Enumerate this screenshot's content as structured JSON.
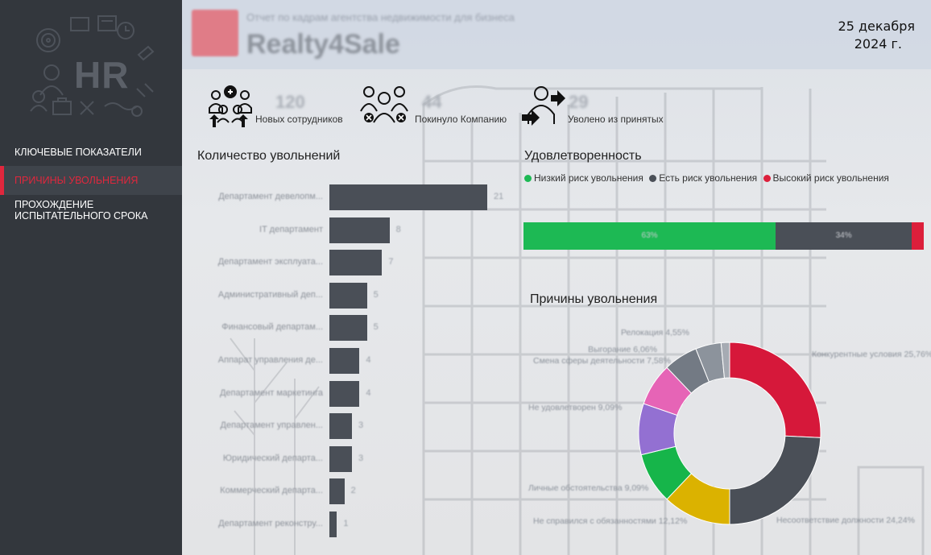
{
  "sidebar": {
    "logo_text": "HR",
    "items": [
      {
        "label": "КЛЮЧЕВЫЕ ПОКАЗАТЕЛИ"
      },
      {
        "label": "ПРИЧИНЫ УВОЛЬНЕНИЯ"
      },
      {
        "label": "ПРОХОЖДЕНИЕ ИСПЫТАТЕЛЬНОГО СРОКА"
      }
    ],
    "active_index": 1
  },
  "header": {
    "brand_name": "Realty4Sale",
    "brand_subtitle": "Отчет по кадрам агентства недвижимости для бизнеса",
    "date_line1": "25 декабря",
    "date_line2": "2024 г."
  },
  "kpis": [
    {
      "icon": "new-employees-icon",
      "value": "120",
      "label": "Новых сотрудников"
    },
    {
      "icon": "left-company-icon",
      "value": "44",
      "label": "Покинуло Компанию"
    },
    {
      "icon": "fired-icon",
      "value": "29",
      "label": "Уволено из принятых"
    }
  ],
  "dismissals": {
    "title": "Количество увольнений",
    "rows": [
      {
        "label": "Департамент девелопм...",
        "value": 21
      },
      {
        "label": "IT департамент",
        "value": 8
      },
      {
        "label": "Департамент эксплуата...",
        "value": 7
      },
      {
        "label": "Административный деп...",
        "value": 5
      },
      {
        "label": "Финансовый департам...",
        "value": 5
      },
      {
        "label": "Аппарат управления де...",
        "value": 4
      },
      {
        "label": "Департамент маркетинга",
        "value": 4
      },
      {
        "label": "Департамент управлен...",
        "value": 3
      },
      {
        "label": "Юридический департа...",
        "value": 3
      },
      {
        "label": "Коммерческий департа...",
        "value": 2
      },
      {
        "label": "Департамент реконстру...",
        "value": 1
      }
    ]
  },
  "satisfaction": {
    "title": "Удовлетворенность",
    "legend": [
      {
        "label": "Низкий риск увольнения",
        "color": "#1db954"
      },
      {
        "label": "Есть риск увольнения",
        "color": "#4a4f57"
      },
      {
        "label": "Высокий риск увольнения",
        "color": "#dc1f3b"
      }
    ],
    "segments": [
      {
        "value": 63,
        "pct": "63%",
        "color": "#1db954"
      },
      {
        "value": 34,
        "pct": "34%",
        "color": "#4a4f57"
      },
      {
        "value": 3,
        "pct": "",
        "color": "#dc1f3b"
      }
    ]
  },
  "reasons": {
    "title": "Причины увольнения",
    "slices": [
      {
        "label": "Конкурентные условия",
        "pct": "25,76%",
        "value": 25.76,
        "color": "#d6183a"
      },
      {
        "label": "Несоответствие должности",
        "pct": "24,24%",
        "value": 24.24,
        "color": "#4a4f57"
      },
      {
        "label": "Не справился с обязанностями",
        "pct": "12,12%",
        "value": 12.12,
        "color": "#dbb200"
      },
      {
        "label": "Личные обстоятельства",
        "pct": "9,09%",
        "value": 9.09,
        "color": "#16b54a"
      },
      {
        "label": "Не удовлетворен",
        "pct": "9,09%",
        "value": 9.09,
        "color": "#9370d2"
      },
      {
        "label": "Смена сферы деятельности",
        "pct": "7,58%",
        "value": 7.58,
        "color": "#e664b6"
      },
      {
        "label": "Выгорание",
        "pct": "6,06%",
        "value": 6.06,
        "color": "#737a84"
      },
      {
        "label": "Релокация",
        "pct": "4,55%",
        "value": 4.55,
        "color": "#8c939c"
      },
      {
        "label": "",
        "pct": "",
        "value": 1.51,
        "color": "#a6abb3"
      }
    ]
  }
}
